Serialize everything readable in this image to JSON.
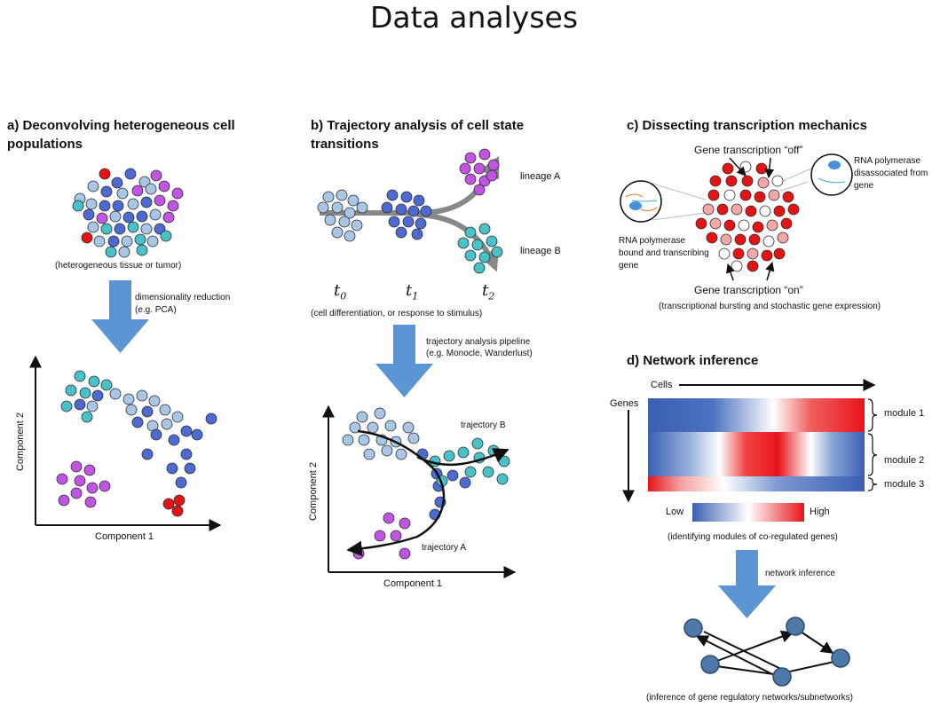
{
  "title": "Data analyses",
  "panel_a": {
    "title": "a) Deconvolving heterogeneous cell populations",
    "sample_caption": "(heterogeneous tissue or tumor)",
    "arrow_label_1": "dimensionality reduction",
    "arrow_label_2": "(e.g. PCA)",
    "xlabel": "Component 1",
    "ylabel": "Component 2"
  },
  "panel_b": {
    "title": "b) Trajectory analysis of cell state transitions",
    "lineage_a": "lineage A",
    "lineage_b": "lineage B",
    "t0": "t",
    "t0_sub": "0",
    "t1": "t",
    "t1_sub": "1",
    "t2": "t",
    "t2_sub": "2",
    "time_caption": "(cell differentiation, or response to stimulus)",
    "arrow_label_1": "trajectory analysis pipeline",
    "arrow_label_2": "(e.g. Monocle, Wanderlust)",
    "trajectory_a": "trajectory A",
    "trajectory_b": "trajectory B",
    "xlabel": "Component 1",
    "ylabel": "Component 2"
  },
  "panel_c": {
    "title": "c) Dissecting transcription mechanics",
    "off_label": "Gene transcription “off”",
    "on_label": "Gene transcription “on”",
    "callout_right_1": "RNA polymerase",
    "callout_right_2": "disassociated from",
    "callout_right_3": "gene",
    "callout_left_1": "RNA polymerase",
    "callout_left_2": "bound and transcribing",
    "callout_left_3": "gene",
    "caption": "(transcriptional bursting and stochastic gene expression)"
  },
  "panel_d": {
    "title": "d) Network inference",
    "cells_label": "Cells",
    "genes_label": "Genes",
    "modules": [
      "module 1",
      "module 2",
      "module 3"
    ],
    "legend_low": "Low",
    "legend_high": "High",
    "heatmap_caption": "(identifying modules of co-regulated genes)",
    "arrow_label": "network inference",
    "network_caption": "(inference of gene regulatory networks/subnetworks)"
  },
  "colors": {
    "light_blue": "#a9c6e6",
    "dark_blue": "#4e6ad2",
    "purple": "#c254e2",
    "teal": "#48c1c9",
    "red": "#e21414",
    "pink": "#f2a8a8",
    "arrow_blue": "#5b95d3",
    "node": "#4f7aa8"
  }
}
